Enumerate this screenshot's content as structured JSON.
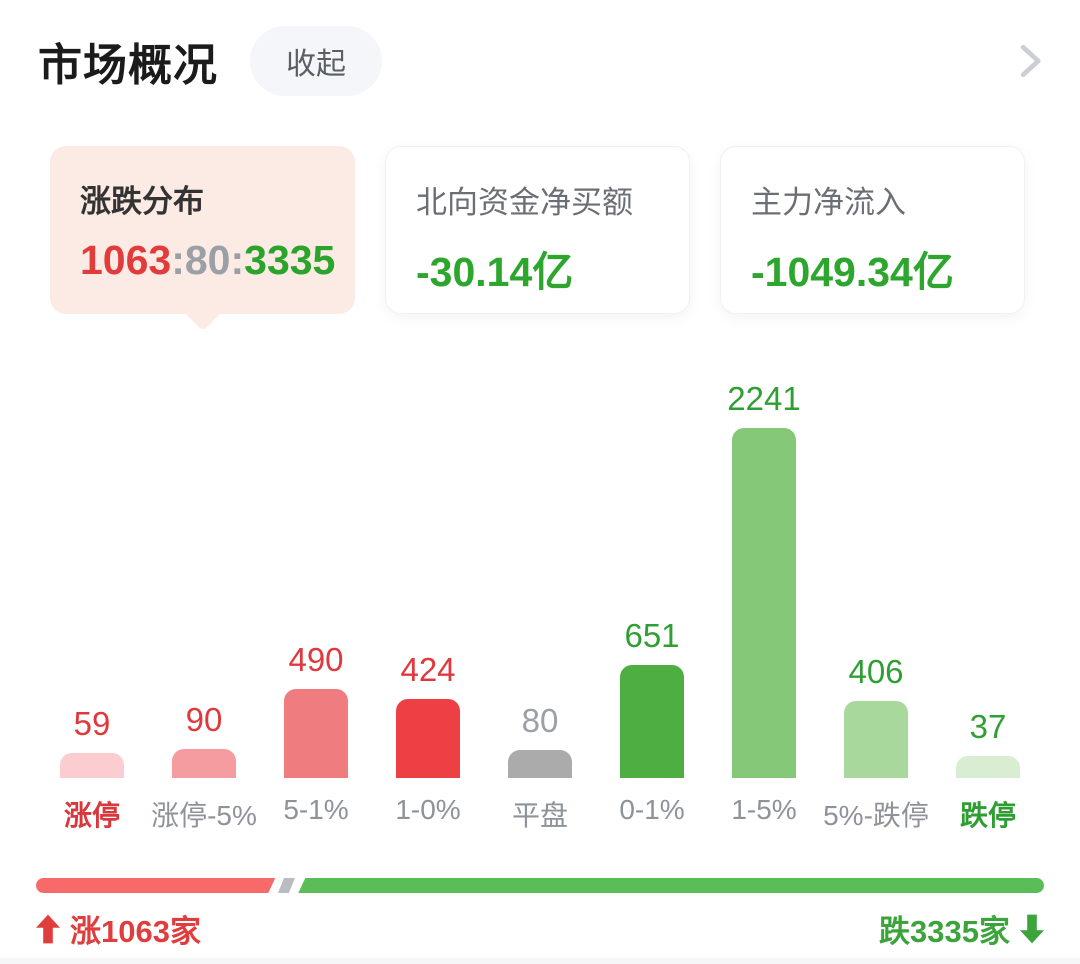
{
  "header": {
    "title": "市场概况",
    "collapse_label": "收起"
  },
  "cards": {
    "updown": {
      "title": "涨跌分布",
      "up": "1063",
      "sep1": ":",
      "flat": "80",
      "sep2": ":",
      "down": "3335",
      "up_color": "#E23B3B",
      "flat_color": "#9AA0A6",
      "down_color": "#2BA42B"
    },
    "northbound": {
      "title": "北向资金净买额",
      "value": "-30.14亿",
      "value_color": "#2DA62D"
    },
    "main_inflow": {
      "title": "主力净流入",
      "value": "-1049.34亿",
      "value_color": "#2DA62D"
    }
  },
  "chart_data": {
    "type": "bar",
    "title": "涨跌分布",
    "categories": [
      "涨停",
      "涨停-5%",
      "5-1%",
      "1-0%",
      "平盘",
      "0-1%",
      "1-5%",
      "5%-跌停",
      "跌停"
    ],
    "values": [
      59,
      90,
      490,
      424,
      80,
      651,
      2241,
      406,
      37
    ],
    "bar_colors": [
      "#FBCDD1",
      "#F59CA0",
      "#EF7C7E",
      "#ED3F44",
      "#ABABAB",
      "#4FAE42",
      "#84C878",
      "#A8D89B",
      "#D9EDD2"
    ],
    "value_colors": [
      "#E0393D",
      "#E0393D",
      "#E0393D",
      "#E0393D",
      "#9AA0A6",
      "#2F9E33",
      "#2F9E33",
      "#2F9E33",
      "#2F9E33"
    ],
    "label_colors": [
      "#D8383C",
      "#8E9399",
      "#8E9399",
      "#8E9399",
      "#8E9399",
      "#8E9399",
      "#8E9399",
      "#8E9399",
      "#2E9D32"
    ],
    "ylim": [
      0,
      2241
    ],
    "grid": false,
    "legend": false
  },
  "breadth_bar": {
    "up_count": 1063,
    "flat_count": 80,
    "down_count": 3335,
    "up_color": "#F76A6A",
    "flat_color": "#B9BDC2",
    "down_color": "#5ABD58"
  },
  "footer": {
    "up_label": "涨1063家",
    "down_label": "跌3335家",
    "up_color": "#E03E3E",
    "down_color": "#3BA43B"
  }
}
